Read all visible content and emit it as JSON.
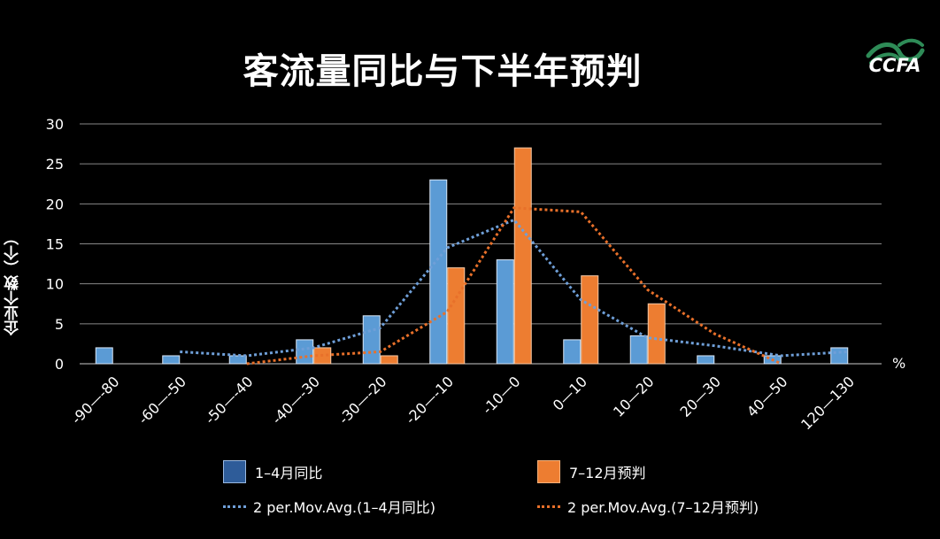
{
  "title": "客流量同比与下半年预判",
  "logo": {
    "text": "CCFA",
    "icon": "ccfa-wave-logo"
  },
  "colors": {
    "series1": "#5b9bd5",
    "series2": "#ed7d31",
    "trend1": "#6f9fd8",
    "trend2": "#e8702a",
    "grid": "#888888"
  },
  "chart_data": {
    "type": "bar",
    "categories": [
      "-90—-80",
      "-60—-50",
      "-50—-40",
      "-40—-30",
      "-30—-20",
      "-20—-10",
      "-10—0",
      "0—10",
      "10—20",
      "20—30",
      "40—50",
      "120—130"
    ],
    "series": [
      {
        "name": "1–4月同比",
        "values": [
          2,
          1,
          1,
          3,
          6,
          23,
          13,
          3,
          3.5,
          1,
          1,
          2
        ]
      },
      {
        "name": "7–12月预判",
        "values": [
          0,
          0,
          0,
          2,
          1,
          12,
          27,
          11,
          7.5,
          0,
          0,
          0
        ]
      }
    ],
    "trendlines": [
      {
        "name": "2 per.Mov.Avg.(1–4月同比)",
        "values": [
          null,
          1.5,
          1,
          2,
          4.5,
          14.5,
          18,
          8,
          3.25,
          2.25,
          1,
          1.5
        ]
      },
      {
        "name": "2 per.Mov.Avg.(7–12月预判)",
        "values": [
          null,
          null,
          0,
          1,
          1.5,
          6.5,
          19.5,
          19,
          9.25,
          3.75,
          0,
          null
        ]
      }
    ],
    "ylabel": "企业个数（个）",
    "xunit": "%",
    "ylim": [
      0,
      30
    ],
    "yticks": [
      0,
      5,
      10,
      15,
      20,
      25,
      30
    ],
    "grid": true,
    "legend_position": "bottom"
  }
}
